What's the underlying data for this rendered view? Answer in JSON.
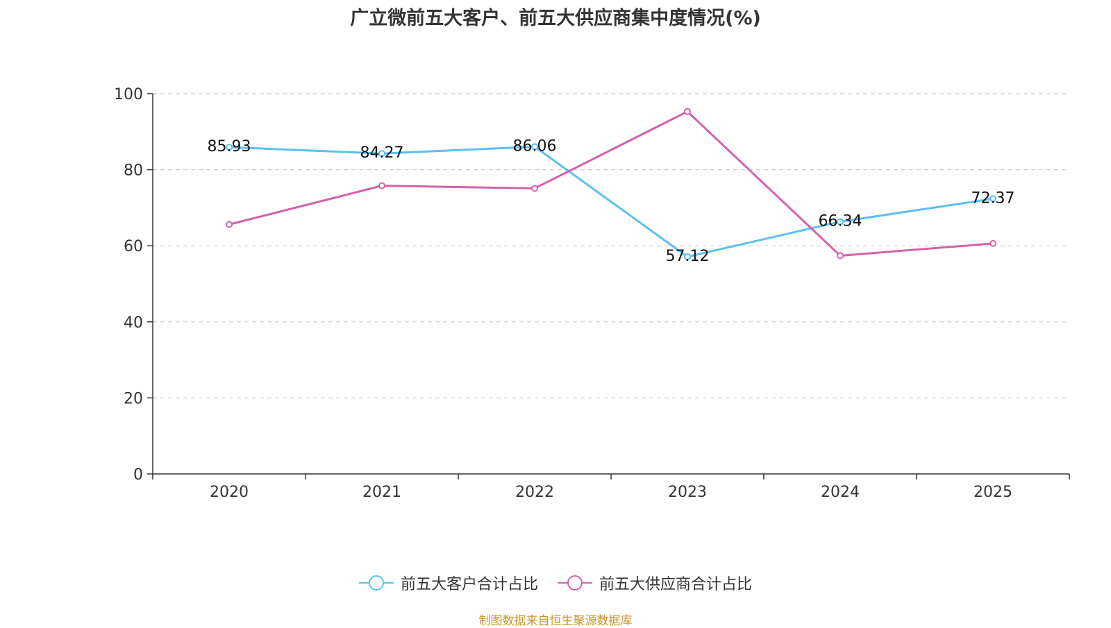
{
  "chart_data": {
    "type": "line",
    "title": "广立微前五大客户、前五大供应商集中度情况(%)",
    "categories": [
      "2020",
      "2021",
      "2022",
      "2023",
      "2024",
      "2025"
    ],
    "ylim": [
      0,
      100
    ],
    "yticks": [
      0,
      20,
      40,
      60,
      80,
      100
    ],
    "grid": true,
    "legend_position": "bottom",
    "series": [
      {
        "name": "前五大客户合计占比",
        "color": "#5bc0f0",
        "values": [
          85.93,
          84.27,
          86.06,
          57.12,
          66.34,
          72.37
        ],
        "labels": [
          "85.93",
          "84.27",
          "86.06",
          "57.12",
          "66.34",
          "72.37"
        ]
      },
      {
        "name": "前五大供应商合计占比",
        "color": "#d462a8",
        "values": [
          65.6,
          75.8,
          75.1,
          95.3,
          57.4,
          60.6
        ],
        "labels": []
      }
    ]
  },
  "source": "制图数据来自恒生聚源数据库"
}
